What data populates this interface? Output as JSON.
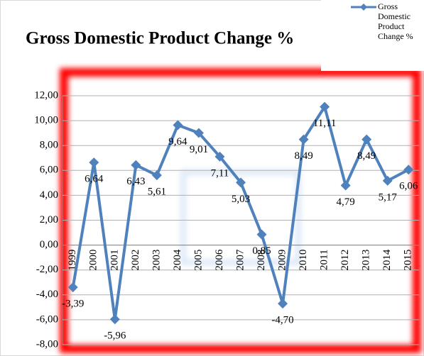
{
  "chart_data": {
    "type": "line",
    "title": "Gross Domestic Product Change %",
    "categories": [
      "1999",
      "2000",
      "2001",
      "2002",
      "2003",
      "2004",
      "2005",
      "2006",
      "2007",
      "2008",
      "2009",
      "2010",
      "2011",
      "2012",
      "2013",
      "2014",
      "2015"
    ],
    "series": [
      {
        "name": "Gross Domestic Product Change %",
        "color": "#4f81bd",
        "values": [
          -3.39,
          6.64,
          -5.96,
          6.43,
          5.61,
          9.64,
          9.01,
          7.11,
          5.03,
          0.85,
          -4.7,
          8.49,
          11.11,
          4.79,
          8.49,
          5.17,
          6.06
        ],
        "value_labels": [
          "-3,39",
          "6,64",
          "-5,96",
          "6,43",
          "5,61",
          "9,64",
          "9,01",
          "7,11",
          "5,03",
          "0,85",
          "-4,70",
          "8,49",
          "11,11",
          "4,79",
          "8,49",
          "5,17",
          "6,06"
        ]
      }
    ],
    "ylim": [
      -8,
      12
    ],
    "yticks": [
      {
        "value": -8,
        "label": "-8,00"
      },
      {
        "value": -6,
        "label": "-6,00"
      },
      {
        "value": -4,
        "label": "-4,00"
      },
      {
        "value": -2,
        "label": "-2,00"
      },
      {
        "value": 0,
        "label": "0,00"
      },
      {
        "value": 2,
        "label": "2,00"
      },
      {
        "value": 4,
        "label": "4,00"
      },
      {
        "value": 6,
        "label": "6,00"
      },
      {
        "value": 8,
        "label": "8,00"
      },
      {
        "value": 10,
        "label": "10,00"
      },
      {
        "value": 12,
        "label": "12,00"
      }
    ],
    "grid": true,
    "legend": "top-right"
  }
}
